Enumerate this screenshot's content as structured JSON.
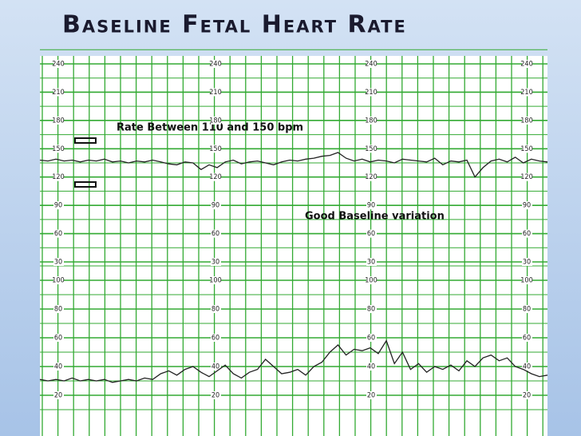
{
  "chart_data": [
    {
      "type": "line",
      "title": "Baseline Fetal Heart Rate",
      "annotations": [
        "Rate Between 110 and 150 bpm",
        "Good Baseline variation"
      ],
      "ylim": [
        30,
        240
      ],
      "yticks": [
        30,
        60,
        90,
        120,
        150,
        180,
        210,
        240
      ],
      "series": [
        {
          "color": "#222222",
          "values": [
            138,
            137,
            139,
            137,
            138,
            136,
            138,
            137,
            139,
            136,
            137,
            135,
            137,
            136,
            138,
            136,
            134,
            133,
            136,
            135,
            128,
            133,
            130,
            136,
            138,
            134,
            136,
            137,
            135,
            133,
            136,
            138,
            137,
            139,
            140,
            142,
            143,
            146,
            140,
            137,
            139,
            136,
            138,
            137,
            135,
            139,
            138,
            137,
            136,
            140,
            133,
            137,
            136,
            138,
            120,
            130,
            137,
            139,
            136,
            141,
            135,
            139,
            137,
            136
          ]
        }
      ]
    },
    {
      "type": "line",
      "ylim": [
        20,
        100
      ],
      "yticks": [
        20,
        40,
        60,
        80,
        100
      ],
      "series": [
        {
          "color": "#222222",
          "values": [
            31,
            30,
            31,
            30,
            32,
            30,
            31,
            30,
            31,
            29,
            30,
            31,
            30,
            32,
            31,
            35,
            37,
            34,
            38,
            40,
            36,
            33,
            37,
            41,
            35,
            32,
            36,
            38,
            45,
            40,
            35,
            36,
            38,
            34,
            40,
            43,
            50,
            55,
            48,
            52,
            51,
            53,
            49,
            58,
            42,
            50,
            38,
            42,
            36,
            40,
            38,
            41,
            37,
            44,
            40,
            46,
            48,
            44,
            46,
            40,
            38,
            35,
            33,
            34
          ]
        }
      ]
    }
  ]
}
